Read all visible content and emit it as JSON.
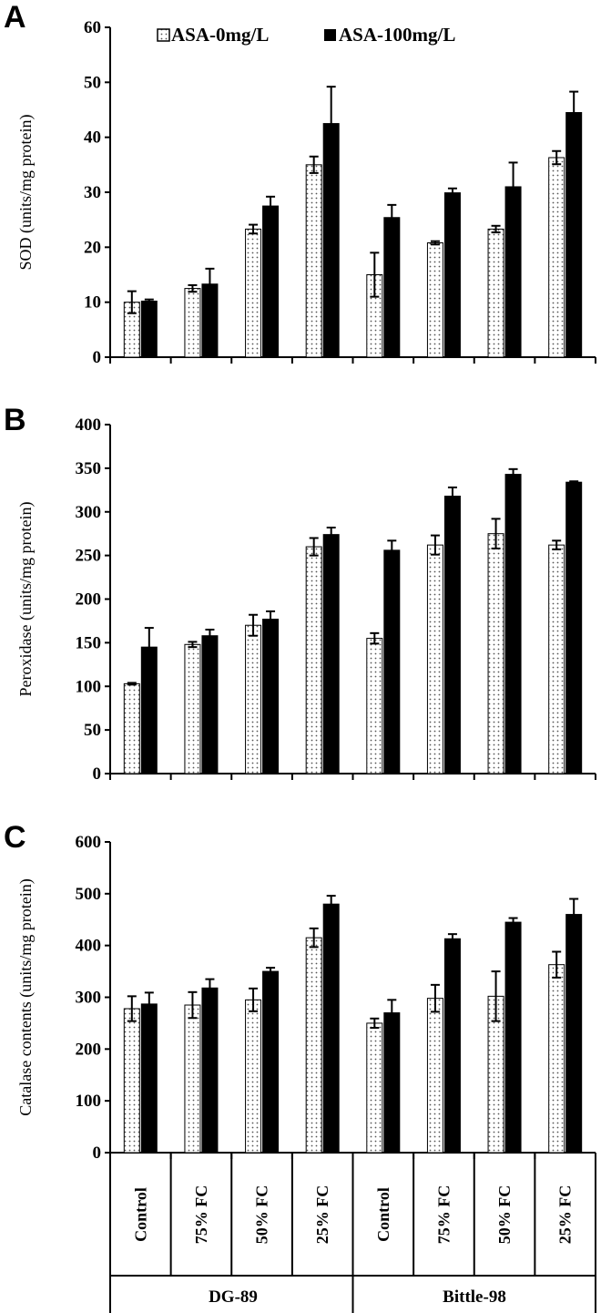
{
  "chart_data": [
    {
      "type": "bar",
      "panel_label": "A",
      "ylabel": "SOD (units/mg protein)",
      "ylim": [
        0,
        60
      ],
      "yticks": [
        "0",
        "10",
        "20",
        "30",
        "40",
        "50",
        "60"
      ],
      "categories": [
        "Control",
        "75% FC",
        "50% FC",
        "25% FC",
        "Control",
        "75% FC",
        "50% FC",
        "25% FC"
      ],
      "groups": [
        {
          "label": "DG-89",
          "categories": [
            "Control",
            "75% FC",
            "50% FC",
            "25% FC"
          ]
        },
        {
          "label": "Bittle-98",
          "categories": [
            "Control",
            "75% FC",
            "50% FC",
            "25% FC"
          ]
        }
      ],
      "legend": {
        "placement": "top",
        "entries": [
          "ASA-0mg/L",
          "ASA-100mg/L"
        ]
      },
      "series": [
        {
          "name": "ASA-0mg/L",
          "color": "#ffffff",
          "pattern": "dotted",
          "values": [
            10.0,
            12.5,
            23.3,
            35.0,
            15.0,
            20.8,
            23.3,
            36.3
          ],
          "errors": [
            2.0,
            0.6,
            0.8,
            1.5,
            4.0,
            0.3,
            0.6,
            1.2
          ]
        },
        {
          "name": "ASA-100mg/L",
          "color": "#000000",
          "pattern": "solid",
          "values": [
            10.2,
            13.3,
            27.5,
            42.5,
            25.4,
            29.9,
            31.0,
            44.5
          ],
          "errors": [
            0.3,
            2.8,
            1.7,
            6.7,
            2.3,
            0.8,
            4.4,
            3.8
          ]
        }
      ]
    },
    {
      "type": "bar",
      "panel_label": "B",
      "ylabel": "Peroxidase (units/mg protein)",
      "ylim": [
        0,
        400
      ],
      "yticks": [
        "0",
        "50",
        "100",
        "150",
        "200",
        "250",
        "300",
        "350",
        "400"
      ],
      "categories": [
        "Control",
        "75% FC",
        "50% FC",
        "25% FC",
        "Control",
        "75% FC",
        "50% FC",
        "25% FC"
      ],
      "series": [
        {
          "name": "ASA-0mg/L",
          "color": "#ffffff",
          "pattern": "dotted",
          "values": [
            103,
            148,
            170,
            260,
            155,
            262,
            275,
            262
          ],
          "errors": [
            1,
            3,
            12,
            10,
            6,
            11,
            17,
            5
          ]
        },
        {
          "name": "ASA-100mg/L",
          "color": "#000000",
          "pattern": "solid",
          "values": [
            145,
            158,
            177,
            274,
            256,
            318,
            343,
            334
          ],
          "errors": [
            22,
            7,
            9,
            8,
            11,
            10,
            6,
            1
          ]
        }
      ]
    },
    {
      "type": "bar",
      "panel_label": "C",
      "ylabel": "Catalase contents (units/mg protein)",
      "ylim": [
        0,
        600
      ],
      "yticks": [
        "0",
        "100",
        "200",
        "300",
        "400",
        "500",
        "600"
      ],
      "categories": [
        "Control",
        "75% FC",
        "50% FC",
        "25% FC",
        "Control",
        "75% FC",
        "50% FC",
        "25% FC"
      ],
      "series": [
        {
          "name": "ASA-0mg/L",
          "color": "#ffffff",
          "pattern": "dotted",
          "values": [
            278,
            285,
            295,
            415,
            250,
            298,
            302,
            363
          ],
          "errors": [
            24,
            25,
            22,
            18,
            9,
            26,
            48,
            25
          ]
        },
        {
          "name": "ASA-100mg/L",
          "color": "#000000",
          "pattern": "solid",
          "values": [
            287,
            318,
            350,
            480,
            270,
            413,
            445,
            460
          ],
          "errors": [
            22,
            17,
            7,
            16,
            25,
            9,
            8,
            30
          ]
        }
      ]
    }
  ]
}
